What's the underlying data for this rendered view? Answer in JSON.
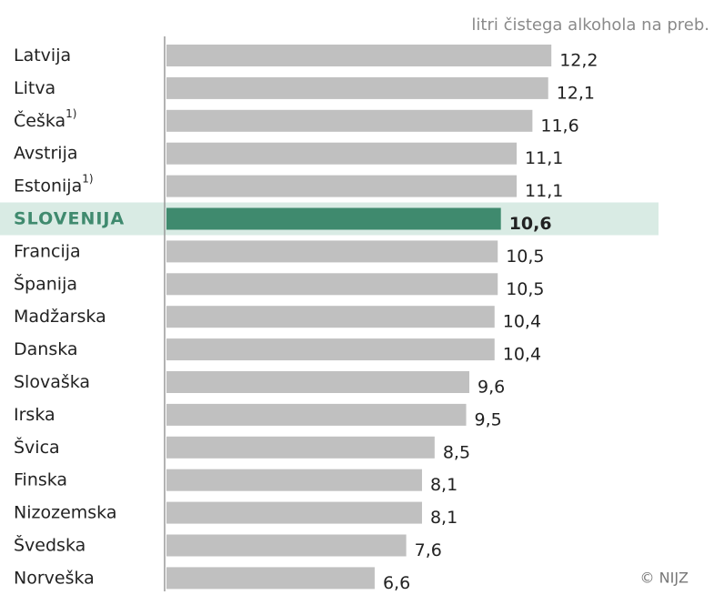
{
  "chart_data": {
    "type": "bar",
    "orientation": "horizontal",
    "unit_label": "litri čistega alkohola na preb.",
    "source": "© NIJZ",
    "categories": [
      "Latvija",
      "Litva",
      "Češka",
      "Avstrija",
      "Estonija",
      "SLOVENIJA",
      "Francija",
      "Španija",
      "Madžarska",
      "Danska",
      "Slovaška",
      "Irska",
      "Švica",
      "Finska",
      "Nizozemska",
      "Švedska",
      "Norveška"
    ],
    "category_notes": [
      null,
      null,
      "1)",
      null,
      "1)",
      null,
      null,
      null,
      null,
      null,
      null,
      null,
      null,
      null,
      null,
      null,
      null
    ],
    "values": [
      12.2,
      12.1,
      11.6,
      11.1,
      11.1,
      10.6,
      10.5,
      10.5,
      10.4,
      10.4,
      9.6,
      9.5,
      8.5,
      8.1,
      8.1,
      7.6,
      6.6
    ],
    "value_labels": [
      "12,2",
      "12,1",
      "11,6",
      "11,1",
      "11,1",
      "10,6",
      "10,5",
      "10,5",
      "10,4",
      "10,4",
      "9,6",
      "9,5",
      "8,5",
      "8,1",
      "8,1",
      "7,6",
      "6,6"
    ],
    "color": "#c0c0c0",
    "highlight": "SLOVENIJA",
    "highlight_color": "#3f8a6e",
    "highlight_band_color": "#d9ebe4",
    "xlim": [
      0,
      16
    ]
  }
}
